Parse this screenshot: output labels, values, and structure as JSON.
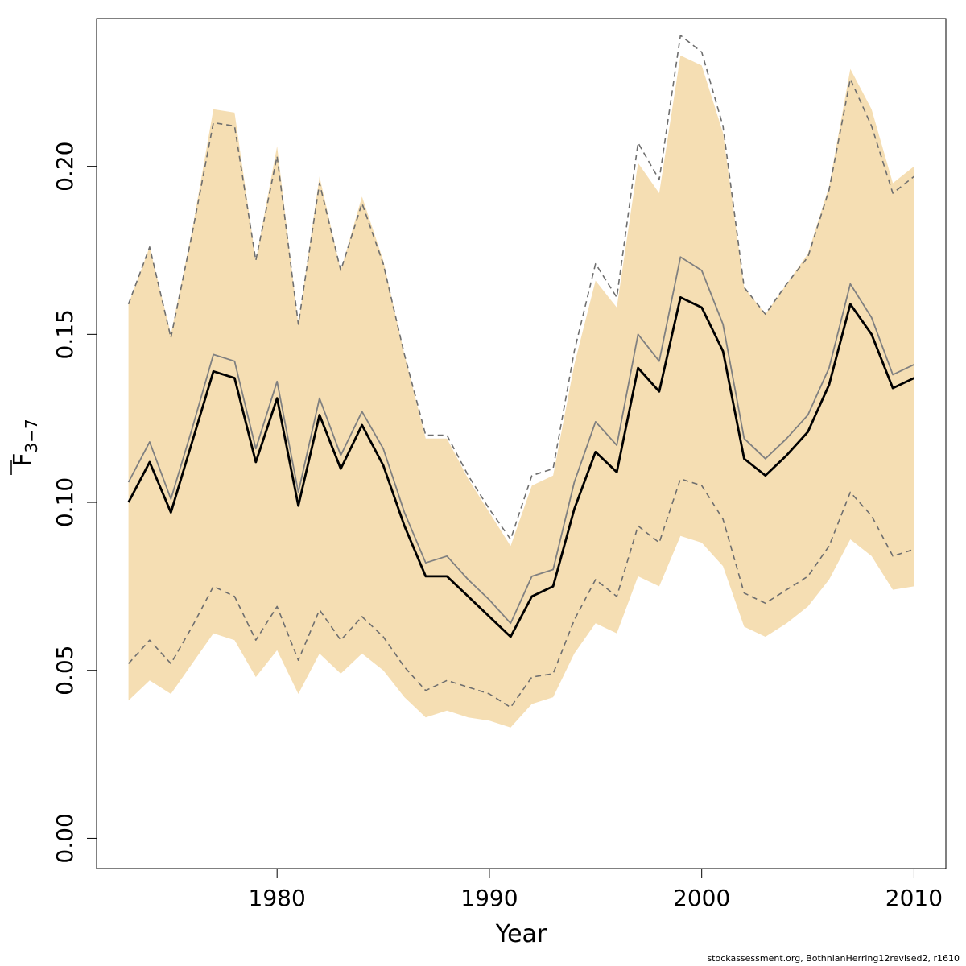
{
  "caption": "stockassessment.org, BothnianHerring12revised2, r1610",
  "colors": {
    "band": "#f5deb3",
    "estimate": "#000000",
    "reference": "#808080",
    "ci": "#6e6e6e"
  },
  "chart_data": {
    "type": "line",
    "xlabel": "Year",
    "ylabel_main": "F",
    "ylabel_sub": "3−7",
    "xlim": [
      1971.5,
      2011.5
    ],
    "ylim": [
      -0.009,
      0.244
    ],
    "xticks": [
      1980,
      1990,
      2000,
      2010
    ],
    "yticks": [
      0.0,
      0.05,
      0.1,
      0.15,
      0.2
    ],
    "ytick_labels": [
      "0.00",
      "0.05",
      "0.10",
      "0.15",
      "0.20"
    ],
    "x": [
      1973,
      1974,
      1975,
      1976,
      1977,
      1978,
      1979,
      1980,
      1981,
      1982,
      1983,
      1984,
      1985,
      1986,
      1987,
      1988,
      1989,
      1990,
      1991,
      1992,
      1993,
      1994,
      1995,
      1996,
      1997,
      1998,
      1999,
      2000,
      2001,
      2002,
      2003,
      2004,
      2005,
      2006,
      2007,
      2008,
      2009,
      2010
    ],
    "band_upper": [
      0.159,
      0.176,
      0.15,
      0.181,
      0.217,
      0.216,
      0.172,
      0.206,
      0.153,
      0.197,
      0.169,
      0.191,
      0.172,
      0.144,
      0.119,
      0.119,
      0.107,
      0.097,
      0.087,
      0.105,
      0.108,
      0.141,
      0.166,
      0.158,
      0.201,
      0.192,
      0.233,
      0.23,
      0.21,
      0.164,
      0.156,
      0.165,
      0.174,
      0.194,
      0.229,
      0.217,
      0.195,
      0.2
    ],
    "band_lower": [
      0.041,
      0.047,
      0.043,
      0.052,
      0.061,
      0.059,
      0.048,
      0.056,
      0.043,
      0.055,
      0.049,
      0.055,
      0.05,
      0.042,
      0.036,
      0.038,
      0.036,
      0.035,
      0.033,
      0.04,
      0.042,
      0.055,
      0.064,
      0.061,
      0.078,
      0.075,
      0.09,
      0.088,
      0.081,
      0.063,
      0.06,
      0.064,
      0.069,
      0.077,
      0.089,
      0.084,
      0.074,
      0.075
    ],
    "series": [
      {
        "role": "estimate",
        "values": [
          0.1,
          0.112,
          0.097,
          0.118,
          0.139,
          0.137,
          0.112,
          0.131,
          0.099,
          0.126,
          0.11,
          0.123,
          0.111,
          0.093,
          0.078,
          0.078,
          0.072,
          0.066,
          0.06,
          0.072,
          0.075,
          0.098,
          0.115,
          0.109,
          0.14,
          0.133,
          0.161,
          0.158,
          0.145,
          0.113,
          0.108,
          0.114,
          0.121,
          0.135,
          0.159,
          0.15,
          0.134,
          0.137
        ]
      },
      {
        "role": "reference",
        "values": [
          0.106,
          0.118,
          0.101,
          0.122,
          0.144,
          0.142,
          0.116,
          0.136,
          0.103,
          0.131,
          0.114,
          0.127,
          0.116,
          0.097,
          0.082,
          0.084,
          0.077,
          0.071,
          0.064,
          0.078,
          0.08,
          0.106,
          0.124,
          0.117,
          0.15,
          0.142,
          0.173,
          0.169,
          0.153,
          0.119,
          0.113,
          0.119,
          0.126,
          0.14,
          0.165,
          0.155,
          0.138,
          0.141
        ]
      },
      {
        "role": "ci-upper",
        "values": [
          0.159,
          0.176,
          0.149,
          0.18,
          0.213,
          0.212,
          0.172,
          0.203,
          0.153,
          0.195,
          0.169,
          0.189,
          0.171,
          0.144,
          0.12,
          0.12,
          0.108,
          0.098,
          0.089,
          0.108,
          0.11,
          0.145,
          0.171,
          0.161,
          0.207,
          0.196,
          0.239,
          0.234,
          0.212,
          0.164,
          0.156,
          0.165,
          0.173,
          0.193,
          0.226,
          0.212,
          0.192,
          0.197
        ]
      },
      {
        "role": "ci-lower",
        "values": [
          0.052,
          0.059,
          0.052,
          0.063,
          0.075,
          0.072,
          0.059,
          0.069,
          0.053,
          0.068,
          0.059,
          0.066,
          0.06,
          0.051,
          0.044,
          0.047,
          0.045,
          0.043,
          0.039,
          0.048,
          0.049,
          0.065,
          0.077,
          0.072,
          0.093,
          0.088,
          0.107,
          0.105,
          0.095,
          0.073,
          0.07,
          0.074,
          0.078,
          0.087,
          0.103,
          0.096,
          0.084,
          0.086
        ]
      }
    ]
  }
}
